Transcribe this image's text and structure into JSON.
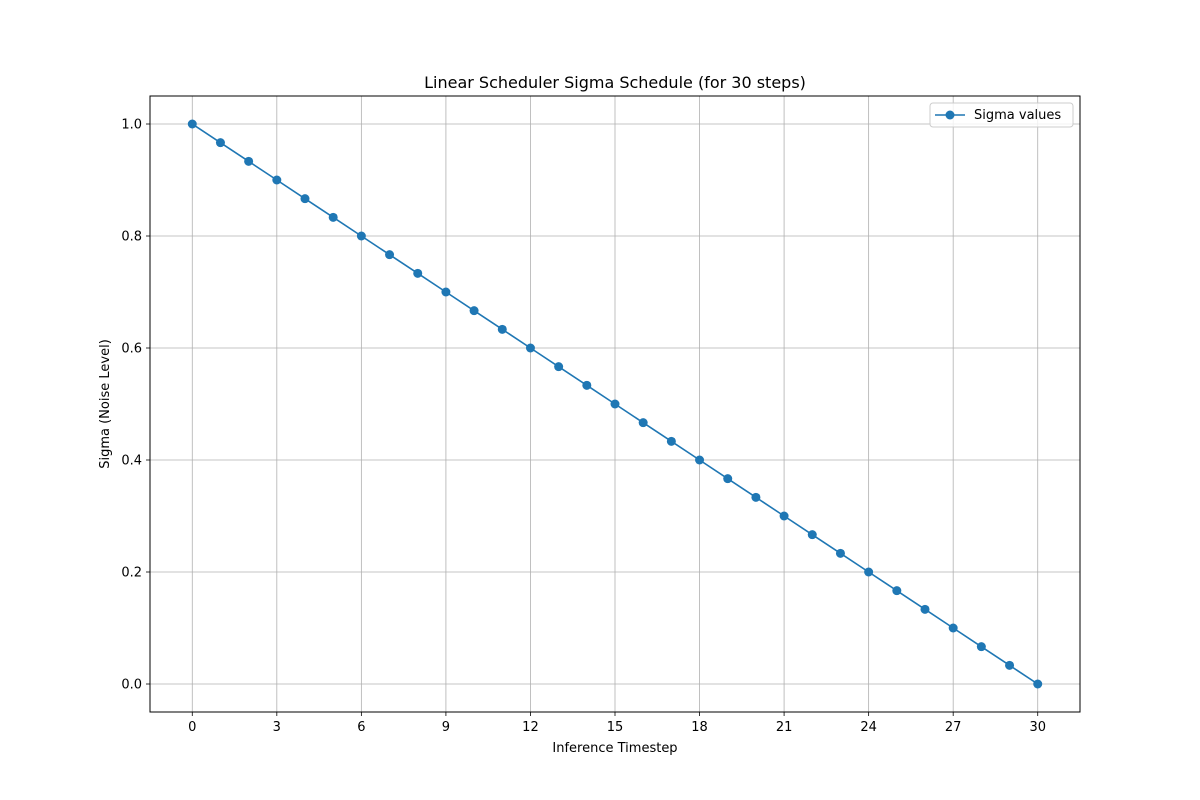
{
  "chart_data": {
    "type": "line",
    "title": "Linear Scheduler Sigma Schedule (for 30 steps)",
    "xlabel": "Inference Timestep",
    "ylabel": "Sigma (Noise Level)",
    "xlim": [
      -1.5,
      31.5
    ],
    "ylim": [
      -0.05,
      1.05
    ],
    "x_ticks": [
      0,
      3,
      6,
      9,
      12,
      15,
      18,
      21,
      24,
      27,
      30
    ],
    "x_tick_labels": [
      "0",
      "3",
      "6",
      "9",
      "12",
      "15",
      "18",
      "21",
      "24",
      "27",
      "30"
    ],
    "y_ticks": [
      0.0,
      0.2,
      0.4,
      0.6,
      0.8,
      1.0
    ],
    "y_tick_labels": [
      "0.0",
      "0.2",
      "0.4",
      "0.6",
      "0.8",
      "1.0"
    ],
    "grid": true,
    "legend_position": "top-right",
    "x": [
      0,
      1,
      2,
      3,
      4,
      5,
      6,
      7,
      8,
      9,
      10,
      11,
      12,
      13,
      14,
      15,
      16,
      17,
      18,
      19,
      20,
      21,
      22,
      23,
      24,
      25,
      26,
      27,
      28,
      29,
      30
    ],
    "series": [
      {
        "name": "Sigma values",
        "color": "#1f77b4",
        "marker": "circle",
        "values": [
          1.0,
          0.9667,
          0.9333,
          0.9,
          0.8667,
          0.8333,
          0.8,
          0.7667,
          0.7333,
          0.7,
          0.6667,
          0.6333,
          0.6,
          0.5667,
          0.5333,
          0.5,
          0.4667,
          0.4333,
          0.4,
          0.3667,
          0.3333,
          0.3,
          0.2667,
          0.2333,
          0.2,
          0.1667,
          0.1333,
          0.1,
          0.0667,
          0.0333,
          0.0
        ]
      }
    ]
  }
}
